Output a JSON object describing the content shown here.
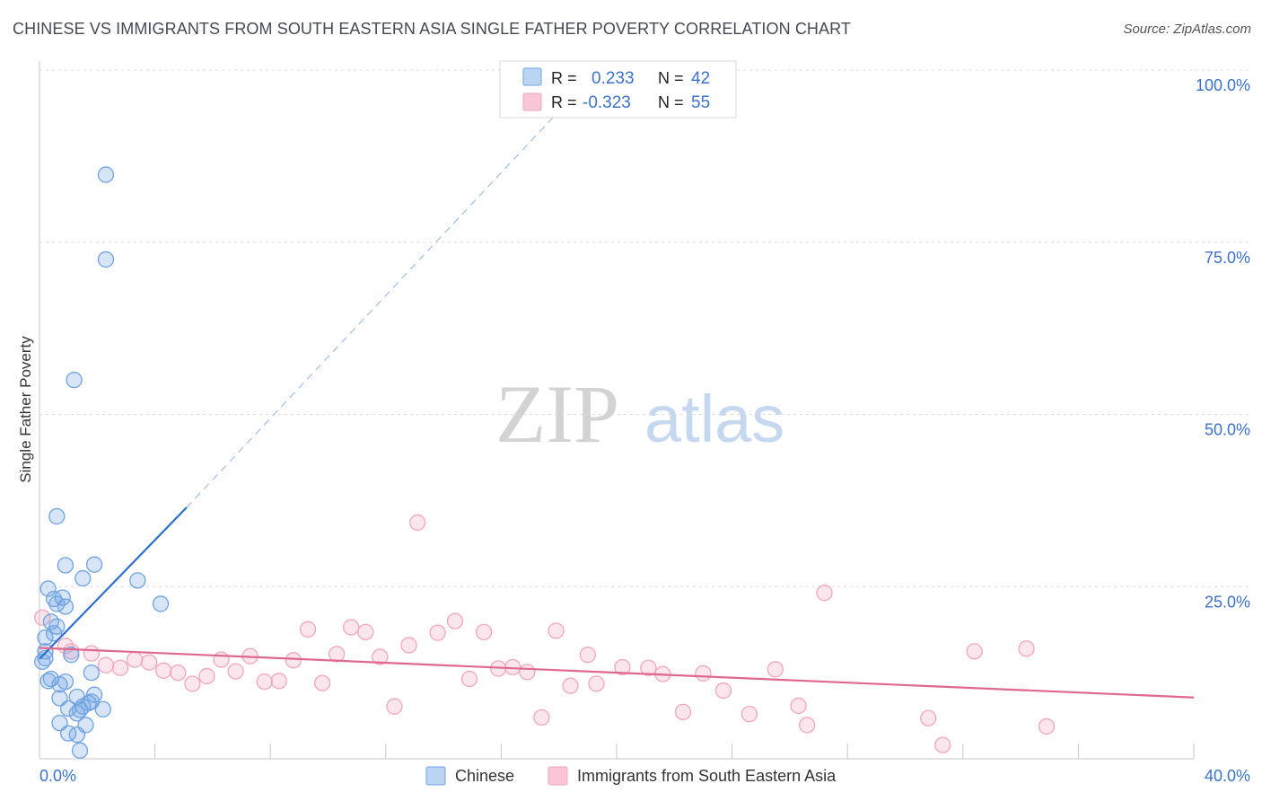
{
  "header": {
    "title": "CHINESE VS IMMIGRANTS FROM SOUTH EASTERN ASIA SINGLE FATHER POVERTY CORRELATION CHART",
    "source": "Source: ZipAtlas.com"
  },
  "watermark": {
    "zip": "ZIP",
    "atlas": "atlas"
  },
  "legend_box": {
    "rows": [
      {
        "r_label": "R =",
        "r_value": "0.233",
        "n_label": "N =",
        "n_value": "42"
      },
      {
        "r_label": "R =",
        "r_value": "-0.323",
        "n_label": "N =",
        "n_value": "55"
      }
    ]
  },
  "chart_data": {
    "type": "scatter",
    "title": "CHINESE VS IMMIGRANTS FROM SOUTH EASTERN ASIA SINGLE FATHER POVERTY CORRELATION CHART",
    "xlabel": "",
    "ylabel": "Single Father Poverty",
    "xlim": [
      0,
      40
    ],
    "ylim": [
      0,
      100
    ],
    "x_tick_labels": [
      "0.0%",
      "40.0%"
    ],
    "y_tick_values": [
      25,
      50,
      75,
      100
    ],
    "y_tick_labels": [
      "25.0%",
      "50.0%",
      "75.0%",
      "100.0%"
    ],
    "grid": true,
    "legend": "bottom-center",
    "colors": {
      "chinese": "#6fa3e3",
      "chinese_line": "#2c6fce",
      "sea": "#f2a5bf",
      "sea_line": "#e0688f",
      "tick_text": "#3a72cc"
    },
    "series": [
      {
        "name": "Chinese",
        "R": 0.233,
        "N": 42,
        "trend": {
          "x0": 0,
          "y0": 14.5,
          "x1": 5.1,
          "y1": 36.5,
          "dash_to_x": 18.4,
          "dash_to_y": 95.8
        },
        "points": [
          [
            2.3,
            84.8
          ],
          [
            2.3,
            72.5
          ],
          [
            1.2,
            55.0
          ],
          [
            0.6,
            35.2
          ],
          [
            0.9,
            28.1
          ],
          [
            1.9,
            28.2
          ],
          [
            1.5,
            26.2
          ],
          [
            3.4,
            25.9
          ],
          [
            0.3,
            24.7
          ],
          [
            0.5,
            23.2
          ],
          [
            0.8,
            23.4
          ],
          [
            0.6,
            22.5
          ],
          [
            0.9,
            22.1
          ],
          [
            4.2,
            22.5
          ],
          [
            0.4,
            19.9
          ],
          [
            0.5,
            18.2
          ],
          [
            0.2,
            17.6
          ],
          [
            0.2,
            15.6
          ],
          [
            1.1,
            15.1
          ],
          [
            0.1,
            14.1
          ],
          [
            0.3,
            11.3
          ],
          [
            0.4,
            11.6
          ],
          [
            0.7,
            10.8
          ],
          [
            0.9,
            11.2
          ],
          [
            1.8,
            12.5
          ],
          [
            0.7,
            8.8
          ],
          [
            1.3,
            9.0
          ],
          [
            1.9,
            9.3
          ],
          [
            1.0,
            7.3
          ],
          [
            1.4,
            7.1
          ],
          [
            1.5,
            7.6
          ],
          [
            2.2,
            7.2
          ],
          [
            1.7,
            8.1
          ],
          [
            1.8,
            8.3
          ],
          [
            1.3,
            6.6
          ],
          [
            0.7,
            5.2
          ],
          [
            1.6,
            4.9
          ],
          [
            1.0,
            3.7
          ],
          [
            1.3,
            3.5
          ],
          [
            1.4,
            1.2
          ],
          [
            0.6,
            19.2
          ],
          [
            0.2,
            14.6
          ]
        ]
      },
      {
        "name": "Immigrants from South Eastern Asia",
        "R": -0.323,
        "N": 55,
        "trend": {
          "x0": 0,
          "y0": 16.1,
          "x1": 40,
          "y1": 8.9
        },
        "points": [
          [
            0.1,
            20.5
          ],
          [
            0.9,
            16.4
          ],
          [
            1.1,
            15.6
          ],
          [
            1.8,
            15.3
          ],
          [
            2.3,
            13.6
          ],
          [
            2.8,
            13.2
          ],
          [
            3.3,
            14.4
          ],
          [
            3.8,
            14.0
          ],
          [
            4.3,
            12.8
          ],
          [
            4.8,
            12.5
          ],
          [
            5.3,
            10.9
          ],
          [
            5.8,
            12.0
          ],
          [
            6.3,
            14.4
          ],
          [
            6.8,
            12.7
          ],
          [
            7.3,
            14.9
          ],
          [
            7.8,
            11.2
          ],
          [
            8.3,
            11.3
          ],
          [
            8.8,
            14.3
          ],
          [
            9.3,
            18.8
          ],
          [
            9.8,
            11.0
          ],
          [
            10.3,
            15.2
          ],
          [
            10.8,
            19.1
          ],
          [
            11.3,
            18.4
          ],
          [
            11.8,
            14.8
          ],
          [
            12.3,
            7.6
          ],
          [
            12.8,
            16.5
          ],
          [
            13.1,
            34.3
          ],
          [
            13.8,
            18.3
          ],
          [
            14.4,
            20.0
          ],
          [
            14.9,
            11.6
          ],
          [
            15.4,
            18.4
          ],
          [
            15.9,
            13.1
          ],
          [
            16.4,
            13.3
          ],
          [
            16.9,
            12.6
          ],
          [
            17.4,
            6.0
          ],
          [
            17.9,
            18.6
          ],
          [
            18.4,
            10.6
          ],
          [
            19.0,
            15.1
          ],
          [
            19.3,
            10.9
          ],
          [
            20.2,
            13.3
          ],
          [
            21.1,
            13.2
          ],
          [
            21.6,
            12.3
          ],
          [
            22.3,
            6.8
          ],
          [
            23.0,
            12.4
          ],
          [
            23.7,
            9.9
          ],
          [
            24.6,
            6.5
          ],
          [
            25.5,
            13.0
          ],
          [
            26.3,
            7.7
          ],
          [
            26.6,
            4.9
          ],
          [
            27.2,
            24.1
          ],
          [
            30.8,
            5.9
          ],
          [
            31.3,
            2.0
          ],
          [
            32.4,
            15.6
          ],
          [
            34.2,
            16.0
          ],
          [
            34.9,
            4.7
          ]
        ]
      }
    ]
  },
  "bottom_legend": {
    "items": [
      {
        "label": "Chinese"
      },
      {
        "label": "Immigrants from South Eastern Asia"
      }
    ]
  }
}
